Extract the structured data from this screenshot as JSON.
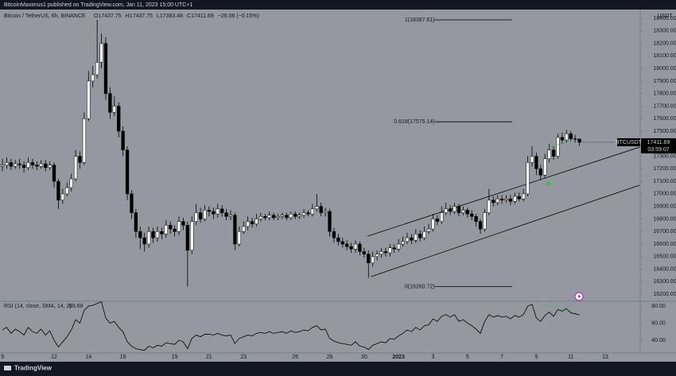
{
  "header": {
    "publisher": "BitcoinMaximus1 published on TradingView.com, Jan 11, 2023 15:00 UTC+1",
    "symbol": "Bitcoin / TetherUS, 6h, BINANCE",
    "ohlc": [
      "O17437.75",
      "H17437.75",
      "L17383.48",
      "C17411.69",
      "−26.06 (−0.15%)"
    ],
    "countdown": "03:59:07",
    "brand": "TradingView"
  },
  "chart_data": {
    "type": "candlestick",
    "axis_unit": "USDT",
    "up_color": "#ffffff",
    "down_color": "#000000",
    "wick_color": "#000000",
    "x": [
      9,
      9.25,
      9.5,
      9.75,
      10,
      10.25,
      10.5,
      10.75,
      11,
      11.25,
      11.5,
      11.75,
      12,
      12.25,
      12.5,
      12.75,
      13,
      13.25,
      13.5,
      13.75,
      14,
      14.25,
      14.5,
      14.75,
      15,
      15.25,
      15.5,
      15.75,
      16,
      16.25,
      16.5,
      16.75,
      17,
      17.25,
      17.5,
      17.75,
      18,
      18.25,
      18.5,
      18.75,
      19,
      19.25,
      19.5,
      19.75,
      20,
      20.25,
      20.5,
      20.75,
      21,
      21.25,
      21.5,
      21.75,
      22,
      22.25,
      22.5,
      22.75,
      23,
      23.25,
      23.5,
      23.75,
      24,
      24.25,
      24.5,
      24.75,
      25,
      25.25,
      25.5,
      25.75,
      26,
      26.25,
      26.5,
      26.75,
      27,
      27.25,
      27.5,
      27.75,
      28,
      28.25,
      28.5,
      28.75,
      29,
      29.25,
      29.5,
      29.75,
      30,
      30.25,
      30.5,
      30.75,
      31,
      31.25,
      31.5,
      31.75,
      32,
      32.25,
      32.5,
      32.75,
      33,
      33.25,
      33.5,
      33.75,
      34,
      34.25,
      34.5,
      34.75,
      35,
      35.25,
      35.5,
      35.75,
      36,
      36.25,
      36.5,
      36.75,
      37,
      37.25,
      37.5,
      37.75,
      38,
      38.25,
      38.5,
      38.75,
      39,
      39.25,
      39.5,
      39.75,
      40,
      40.25,
      40.5,
      40.75,
      41,
      41.25,
      41.5,
      41.75,
      42,
      42.25,
      42.5
    ],
    "series": [
      {
        "name": "BTCUSDT",
        "open": [
          17220,
          17230,
          17250,
          17220,
          17240,
          17230,
          17210,
          17250,
          17230,
          17220,
          17240,
          17210,
          17230,
          17100,
          16950,
          17000,
          17050,
          17120,
          17300,
          17250,
          17600,
          17900,
          17950,
          18050,
          18200,
          17800,
          17650,
          17700,
          17500,
          17350,
          17000,
          16850,
          16700,
          16650,
          16600,
          16700,
          16650,
          16700,
          16680,
          16750,
          16720,
          16700,
          16780,
          16750,
          16550,
          16780,
          16850,
          16800,
          16870,
          16860,
          16840,
          16880,
          16850,
          16820,
          16830,
          16600,
          16700,
          16740,
          16780,
          16760,
          16800,
          16820,
          16810,
          16830,
          16810,
          16820,
          16830,
          16810,
          16840,
          16820,
          16830,
          16850,
          16840,
          16880,
          16900,
          16850,
          16860,
          16700,
          16650,
          16620,
          16600,
          16580,
          16560,
          16600,
          16540,
          16520,
          16450,
          16500,
          16520,
          16540,
          16530,
          16570,
          16560,
          16600,
          16620,
          16650,
          16630,
          16680,
          16650,
          16700,
          16720,
          16800,
          16780,
          16850,
          16880,
          16860,
          16900,
          16850,
          16870,
          16840,
          16820,
          16780,
          16720,
          16850,
          16950,
          16930,
          16960,
          16950,
          16960,
          16940,
          16980,
          16960,
          17000,
          17250,
          17300,
          17200,
          17150,
          17280,
          17350,
          17300,
          17450,
          17430,
          17480,
          17440,
          17437.75
        ],
        "high": [
          17280,
          17290,
          17280,
          17270,
          17280,
          17260,
          17290,
          17280,
          17260,
          17270,
          17270,
          17260,
          17250,
          17120,
          17040,
          17090,
          17160,
          17350,
          17340,
          17650,
          17980,
          18020,
          18387.61,
          18280,
          18250,
          17850,
          17780,
          17730,
          17540,
          17380,
          17030,
          16880,
          16740,
          16690,
          16740,
          16730,
          16740,
          16730,
          16790,
          16780,
          16750,
          16820,
          16810,
          16780,
          16820,
          16920,
          16890,
          16910,
          16900,
          16890,
          16920,
          16910,
          16880,
          16870,
          16850,
          16740,
          16780,
          16820,
          16810,
          16840,
          16850,
          16840,
          16860,
          16850,
          16840,
          16850,
          16850,
          16860,
          16860,
          16850,
          16880,
          16870,
          16920,
          17000,
          16930,
          16890,
          16880,
          16730,
          16680,
          16650,
          16630,
          16610,
          16630,
          16620,
          16570,
          16550,
          16540,
          16550,
          16570,
          16570,
          16600,
          16600,
          16640,
          16660,
          16690,
          16680,
          16720,
          16710,
          16740,
          16760,
          16840,
          16830,
          16900,
          16930,
          16910,
          16930,
          16920,
          16900,
          16890,
          16870,
          16840,
          16800,
          16880,
          17040,
          16980,
          16990,
          16990,
          16990,
          16990,
          17010,
          17010,
          17040,
          17300,
          17380,
          17330,
          17230,
          17320,
          17400,
          17380,
          17480,
          17490,
          17510,
          17500,
          17470,
          17437.75
        ],
        "low": [
          17180,
          17200,
          17190,
          17200,
          17200,
          17170,
          17190,
          17200,
          17190,
          17200,
          17180,
          17190,
          17050,
          16880,
          16920,
          16980,
          17020,
          17100,
          17200,
          17230,
          17580,
          17850,
          17920,
          18000,
          17750,
          17600,
          17620,
          17450,
          17300,
          16950,
          16800,
          16650,
          16560,
          16540,
          16570,
          16610,
          16620,
          16640,
          16650,
          16680,
          16660,
          16670,
          16710,
          16260.72,
          16520,
          16750,
          16770,
          16780,
          16820,
          16800,
          16810,
          16820,
          16790,
          16790,
          16550,
          16580,
          16680,
          16710,
          16730,
          16740,
          16780,
          16790,
          16790,
          16790,
          16790,
          16800,
          16790,
          16790,
          16800,
          16800,
          16810,
          16820,
          16820,
          16860,
          16820,
          16820,
          16660,
          16610,
          16590,
          16570,
          16550,
          16530,
          16530,
          16510,
          16490,
          16330,
          16420,
          16470,
          16490,
          16500,
          16500,
          16530,
          16540,
          16580,
          16600,
          16600,
          16610,
          16620,
          16630,
          16680,
          16700,
          16750,
          16760,
          16830,
          16830,
          16840,
          16820,
          16830,
          16810,
          16790,
          16740,
          16680,
          16700,
          16830,
          16900,
          16910,
          16920,
          16930,
          16910,
          16920,
          16940,
          16940,
          16980,
          17220,
          17150,
          17110,
          17130,
          17250,
          17270,
          17280,
          17400,
          17410,
          17420,
          17410,
          17383.48
        ],
        "close": [
          17230,
          17250,
          17220,
          17240,
          17230,
          17210,
          17250,
          17230,
          17220,
          17240,
          17210,
          17230,
          17100,
          16950,
          17000,
          17050,
          17120,
          17300,
          17250,
          17600,
          17900,
          17950,
          18050,
          18200,
          17800,
          17650,
          17700,
          17500,
          17350,
          17000,
          16850,
          16700,
          16650,
          16600,
          16700,
          16650,
          16700,
          16680,
          16750,
          16720,
          16700,
          16780,
          16750,
          16550,
          16780,
          16850,
          16800,
          16870,
          16860,
          16840,
          16880,
          16850,
          16820,
          16830,
          16600,
          16700,
          16740,
          16780,
          16760,
          16800,
          16820,
          16810,
          16830,
          16810,
          16820,
          16830,
          16810,
          16840,
          16820,
          16830,
          16850,
          16840,
          16880,
          16900,
          16850,
          16860,
          16700,
          16650,
          16620,
          16600,
          16580,
          16560,
          16600,
          16540,
          16520,
          16450,
          16500,
          16520,
          16540,
          16530,
          16570,
          16560,
          16600,
          16620,
          16650,
          16630,
          16680,
          16650,
          16700,
          16720,
          16800,
          16780,
          16850,
          16880,
          16860,
          16900,
          16850,
          16870,
          16840,
          16820,
          16780,
          16720,
          16850,
          16950,
          16930,
          16960,
          16950,
          16960,
          16940,
          16980,
          16960,
          17000,
          17250,
          17300,
          17200,
          17150,
          17280,
          17350,
          17300,
          17450,
          17430,
          17480,
          17440,
          17437.75,
          17411.69
        ]
      }
    ],
    "xlim": [
      8.86,
      46.03
    ],
    "xticks": [
      9,
      12,
      14,
      16,
      19,
      21,
      23,
      26,
      28,
      30,
      {
        "value": 32,
        "label": "2023"
      },
      {
        "value": 34,
        "label": "3"
      },
      {
        "value": 36,
        "label": "5"
      },
      {
        "value": 38,
        "label": "7"
      },
      {
        "value": 40,
        "label": "9"
      },
      {
        "value": 42,
        "label": "11"
      },
      {
        "value": 44,
        "label": "13"
      }
    ],
    "ylim": [
      16150,
      18470
    ],
    "yticks": [
      {
        "value": 16200,
        "label": "16200.00"
      },
      {
        "value": 16300,
        "label": "16300.00"
      },
      {
        "value": 16400,
        "label": "16400.00"
      },
      {
        "value": 16500,
        "label": "16500.00"
      },
      {
        "value": 16600,
        "label": "16600.00"
      },
      {
        "value": 16700,
        "label": "16700.00"
      },
      {
        "value": 16800,
        "label": "16800.00"
      },
      {
        "value": 16900,
        "label": "16900.00"
      },
      {
        "value": 17000,
        "label": "17000.00"
      },
      {
        "value": 17100,
        "label": "17100.00"
      },
      {
        "value": 17200,
        "label": "17200.00"
      },
      {
        "value": 17300,
        "label": "17300.00"
      },
      {
        "value": 17400,
        "label": "17400.00"
      },
      {
        "value": 17500,
        "label": "17500.00"
      },
      {
        "value": 17600,
        "label": "17600.00"
      },
      {
        "value": 17700,
        "label": "17700.00"
      },
      {
        "value": 17800,
        "label": "17800.00"
      },
      {
        "value": 17900,
        "label": "17900.00"
      },
      {
        "value": 18000,
        "label": "18000.00"
      },
      {
        "value": 18100,
        "label": "18100.00"
      },
      {
        "value": 18200,
        "label": "18200.00"
      },
      {
        "value": 18300,
        "label": "18300.00"
      },
      {
        "value": 18400,
        "label": "18400.00"
      }
    ],
    "fib_levels": [
      {
        "label": "1(18387.61)",
        "value": 18387.61,
        "x": [
          34.1,
          38.6
        ]
      },
      {
        "label": "0.618(17575.14)",
        "value": 17575.14,
        "x": [
          34.1,
          38.6
        ]
      },
      {
        "label": "0(16260.72)",
        "value": 16260.72,
        "x": [
          34.1,
          38.6
        ]
      }
    ],
    "trendlines": [
      {
        "x": [
          30.2,
          46.0
        ],
        "y": [
          16663,
          17373
        ],
        "color": "#000000"
      },
      {
        "x": [
          30.4,
          46.0
        ],
        "y": [
          16340,
          17070
        ],
        "color": "#000000"
      }
    ],
    "divergence": {
      "x": [
        40.48,
        42.0
      ],
      "y": [
        17354,
        17430
      ],
      "rsi_x": [
        40.4,
        42.1
      ],
      "rsi_y": [
        81.9,
        72.6
      ],
      "color": "#3fb950"
    },
    "markers": [
      {
        "x": 40.7,
        "y": 17090,
        "color": "#3fb950"
      }
    ],
    "rsi": {
      "name": "RSI (14, close, SMA, 14, 2)",
      "color": "#000000",
      "values": [
        52,
        55,
        48,
        53,
        50,
        46,
        55,
        50,
        48,
        53,
        46,
        51,
        40,
        32,
        38,
        44,
        52,
        64,
        60,
        75,
        80,
        81,
        83,
        85,
        66,
        60,
        62,
        55,
        50,
        38,
        33,
        30,
        29,
        28,
        33,
        31,
        34,
        33,
        37,
        36,
        35,
        40,
        38,
        30,
        42,
        46,
        44,
        47,
        47,
        46,
        48,
        46,
        45,
        46,
        36,
        42,
        44,
        46,
        45,
        48,
        49,
        48,
        50,
        48,
        49,
        50,
        48,
        51,
        49,
        50,
        52,
        51,
        55,
        57,
        52,
        53,
        42,
        39,
        37,
        36,
        35,
        34,
        38,
        33,
        32,
        29,
        34,
        36,
        38,
        37,
        42,
        41,
        45,
        48,
        52,
        50,
        55,
        52,
        57,
        58,
        65,
        62,
        68,
        70,
        67,
        70,
        62,
        64,
        60,
        57,
        53,
        48,
        62,
        70,
        67,
        69,
        67,
        68,
        65,
        69,
        67,
        70,
        80,
        82,
        66,
        62,
        69,
        73,
        68,
        76,
        74,
        77,
        72,
        71,
        69.68
      ],
      "ylim": [
        25,
        84.7
      ],
      "yticks": [
        {
          "value": 40,
          "label": "40.00"
        },
        {
          "value": 60,
          "label": "60.00"
        },
        {
          "value": 80,
          "label": "80.00"
        }
      ]
    }
  }
}
